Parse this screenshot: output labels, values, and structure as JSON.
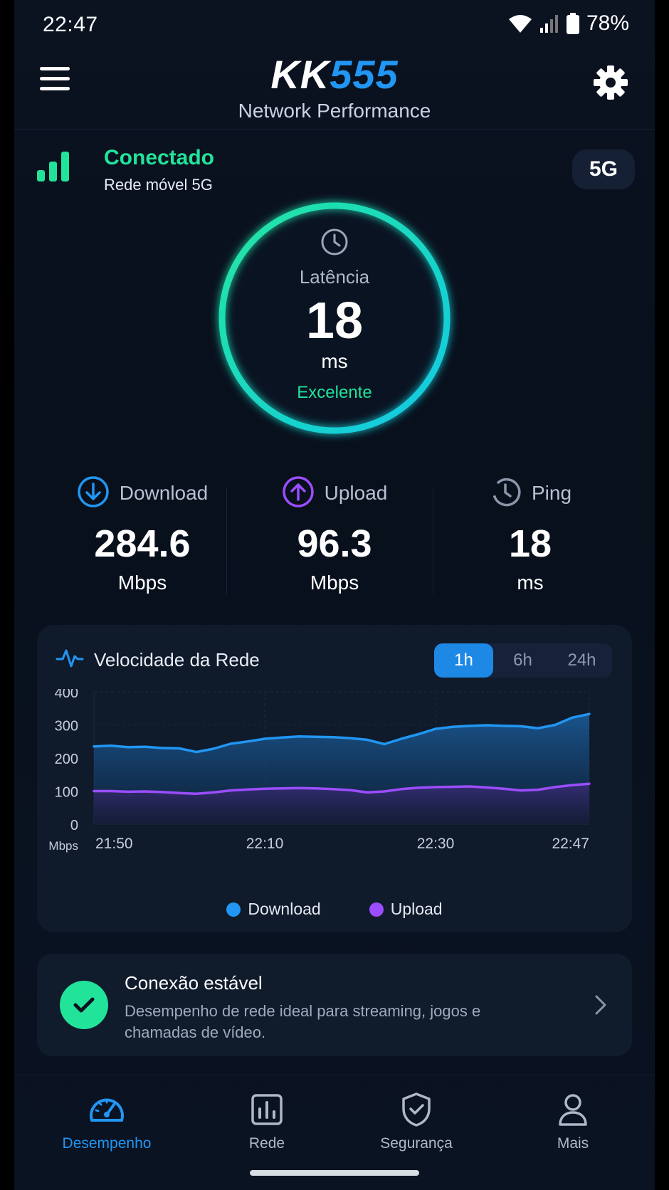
{
  "status_bar": {
    "time": "22:47",
    "battery": "78%"
  },
  "header": {
    "logo_kk": "KK",
    "logo_num": "555",
    "subtitle": "Network Performance"
  },
  "connection": {
    "status": "Conectado",
    "network": "Rede móvel 5G",
    "badge": "5G"
  },
  "latency": {
    "label": "Latência",
    "value": "18",
    "unit": "ms",
    "quality": "Excelente"
  },
  "metrics": [
    {
      "label": "Download",
      "value": "284.6",
      "unit": "Mbps",
      "icon": "download-icon"
    },
    {
      "label": "Upload",
      "value": "96.3",
      "unit": "Mbps",
      "icon": "upload-icon"
    },
    {
      "label": "Ping",
      "value": "18",
      "unit": "ms",
      "icon": "ping-icon"
    }
  ],
  "chart_card": {
    "title": "Velocidade da Rede",
    "ranges": [
      "1h",
      "6h",
      "24h"
    ],
    "active_range": "1h"
  },
  "chart_data": {
    "type": "area",
    "ylabel": "Mbps",
    "ylim": [
      0,
      400
    ],
    "yticks": [
      "400",
      "300",
      "200",
      "100",
      "0"
    ],
    "xticks": [
      "21:50",
      "22:10",
      "22:30",
      "22:47"
    ],
    "x": [
      "21:50",
      "21:52",
      "21:54",
      "21:56",
      "21:58",
      "22:00",
      "22:02",
      "22:04",
      "22:06",
      "22:08",
      "22:10",
      "22:12",
      "22:14",
      "22:16",
      "22:18",
      "22:20",
      "22:22",
      "22:24",
      "22:26",
      "22:28",
      "22:30",
      "22:32",
      "22:34",
      "22:36",
      "22:38",
      "22:40",
      "22:42",
      "22:44",
      "22:46",
      "22:47"
    ],
    "series": [
      {
        "name": "Download",
        "color": "#2196f3",
        "values": [
          235,
          237,
          233,
          234,
          230,
          229,
          218,
          228,
          243,
          250,
          258,
          262,
          265,
          264,
          263,
          260,
          255,
          242,
          258,
          272,
          288,
          294,
          297,
          299,
          297,
          296,
          290,
          300,
          322,
          333
        ]
      },
      {
        "name": "Upload",
        "color": "#9b4dff",
        "values": [
          100,
          100,
          98,
          99,
          97,
          94,
          92,
          96,
          102,
          105,
          107,
          108,
          109,
          108,
          106,
          103,
          96,
          99,
          106,
          110,
          112,
          113,
          114,
          111,
          107,
          102,
          104,
          112,
          118,
          122
        ]
      }
    ],
    "grid": true,
    "legend_position": "bottom"
  },
  "stable_card": {
    "title": "Conexão estável",
    "description": "Desempenho de rede ideal para streaming, jogos e chamadas de vídeo."
  },
  "bottom_nav": [
    {
      "label": "Desempenho",
      "icon": "speedometer-icon",
      "active": true
    },
    {
      "label": "Rede",
      "icon": "bar-chart-icon",
      "active": false
    },
    {
      "label": "Segurança",
      "icon": "shield-check-icon",
      "active": false
    },
    {
      "label": "Mais",
      "icon": "person-icon",
      "active": false
    }
  ],
  "colors": {
    "accent": "#2196f3",
    "success": "#22e39a",
    "upload": "#9b4dff",
    "background": "#0b1220"
  }
}
